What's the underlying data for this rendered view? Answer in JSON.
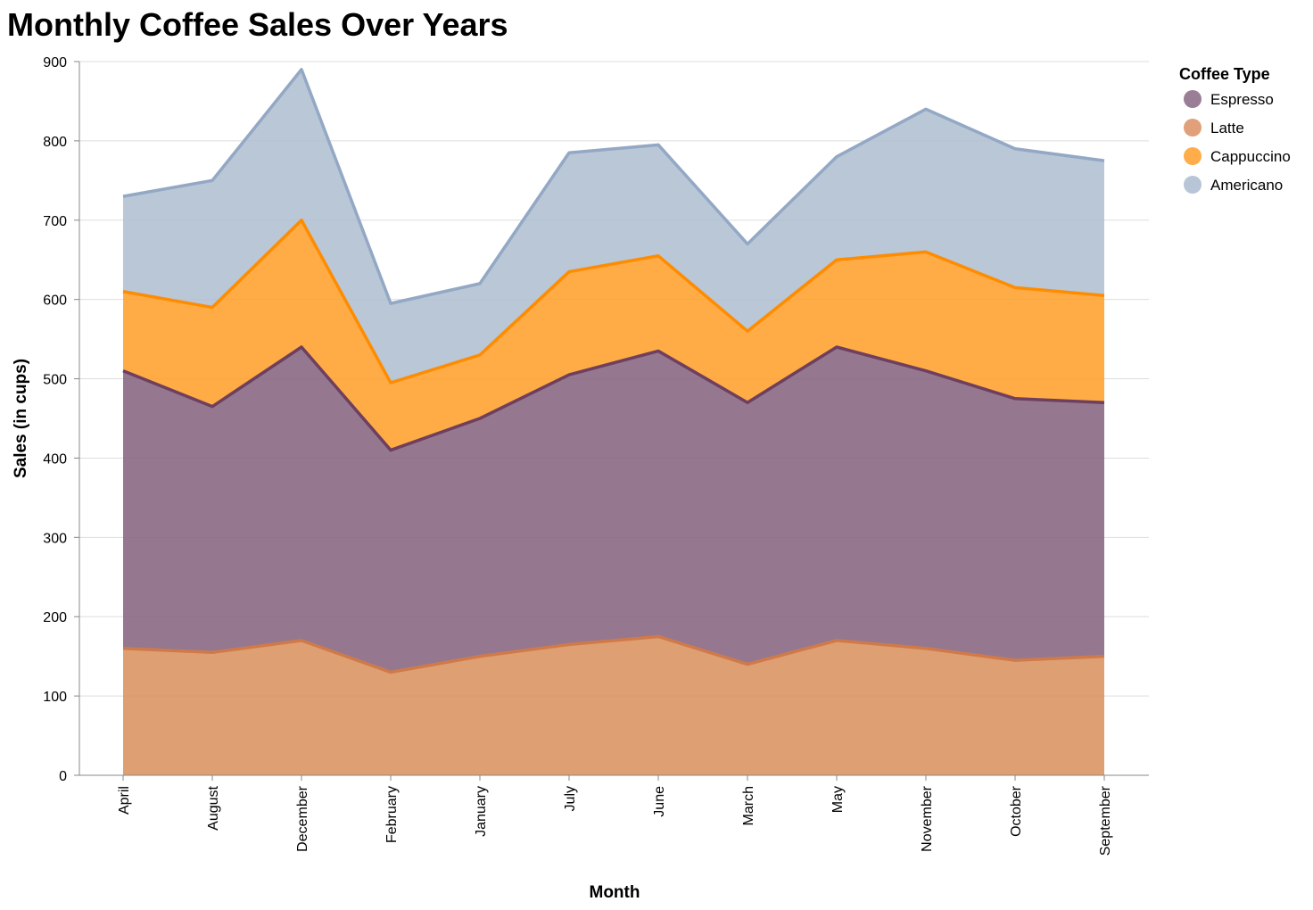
{
  "chart_data": {
    "type": "area",
    "stacked": true,
    "title": "Monthly Coffee Sales Over Years",
    "xlabel": "Month",
    "ylabel": "Sales (in cups)",
    "ylim": [
      0,
      900
    ],
    "yticks": [
      0,
      100,
      200,
      300,
      400,
      500,
      600,
      700,
      800,
      900
    ],
    "grid": true,
    "legend_title": "Coffee Type",
    "legend_position": "top-right",
    "categories": [
      "April",
      "August",
      "December",
      "February",
      "January",
      "July",
      "June",
      "March",
      "May",
      "November",
      "October",
      "September"
    ],
    "series": [
      {
        "name": "Latte",
        "fill": "#d9925f",
        "stroke": "#d07a4a",
        "values": [
          160,
          155,
          170,
          130,
          150,
          165,
          175,
          140,
          170,
          160,
          145,
          150
        ]
      },
      {
        "name": "Espresso",
        "fill": "#866580",
        "stroke": "#6e3f5e",
        "values": [
          350,
          310,
          370,
          280,
          300,
          340,
          360,
          330,
          370,
          350,
          330,
          320
        ]
      },
      {
        "name": "Cappuccino",
        "fill": "#ffa12e",
        "stroke": "#ff8c00",
        "values": [
          100,
          125,
          160,
          85,
          80,
          130,
          120,
          90,
          110,
          150,
          140,
          135
        ]
      },
      {
        "name": "Americano",
        "fill": "#b0bfd2",
        "stroke": "#93a8c4",
        "values": [
          120,
          160,
          190,
          100,
          90,
          150,
          140,
          110,
          130,
          180,
          175,
          170
        ]
      }
    ],
    "legend_order": [
      "Espresso",
      "Latte",
      "Cappuccino",
      "Americano"
    ],
    "colors": {
      "Espresso": "#9a7e96",
      "Latte": "#e0a07a",
      "Cappuccino": "#ffad4a",
      "Americano": "#b8c5d6",
      "grid": "#dddddd",
      "axis": "#888888"
    }
  }
}
